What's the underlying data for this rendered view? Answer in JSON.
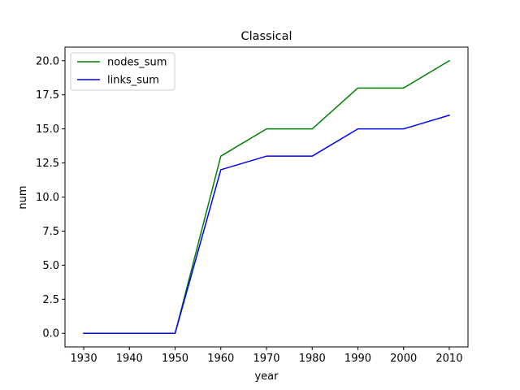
{
  "chart_data": {
    "type": "line",
    "title": "Classical",
    "xlabel": "year",
    "ylabel": "num",
    "x": [
      1930,
      1940,
      1950,
      1960,
      1970,
      1980,
      1990,
      2000,
      2010
    ],
    "xlim": [
      1925.9,
      2014.1
    ],
    "ylim": [
      -1.0,
      21.0
    ],
    "xticks": [
      1930,
      1940,
      1950,
      1960,
      1970,
      1980,
      1990,
      2000,
      2010
    ],
    "yticks": [
      0.0,
      2.5,
      5.0,
      7.5,
      10.0,
      12.5,
      15.0,
      17.5,
      20.0
    ],
    "xtick_labels": [
      "1930",
      "1940",
      "1950",
      "1960",
      "1970",
      "1980",
      "1990",
      "2000",
      "2010"
    ],
    "ytick_labels": [
      "0.0",
      "2.5",
      "5.0",
      "7.5",
      "10.0",
      "12.5",
      "15.0",
      "17.5",
      "20.0"
    ],
    "grid": false,
    "legend_position": "top-left",
    "series": [
      {
        "name": "nodes_sum",
        "color": "#008000",
        "values": [
          0,
          0,
          0,
          13,
          15,
          15,
          18,
          18,
          20
        ]
      },
      {
        "name": "links_sum",
        "color": "#0000ff",
        "values": [
          0,
          0,
          0,
          12,
          13,
          13,
          15,
          15,
          16
        ]
      }
    ]
  }
}
